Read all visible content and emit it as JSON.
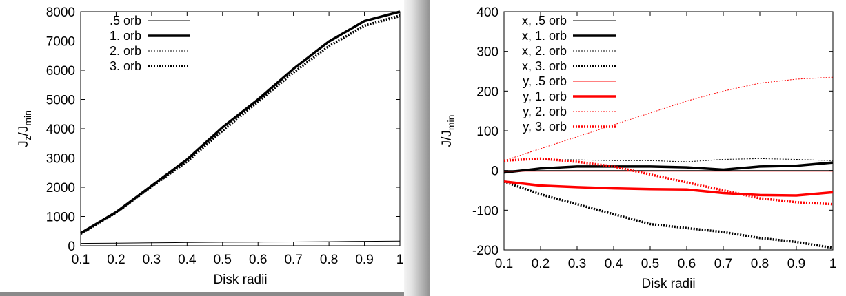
{
  "chart_data": [
    {
      "type": "line",
      "xlabel": "Disk radii",
      "ylabel": "J_z/J_min",
      "ylabel_main": "J",
      "ylabel_sub1": "z",
      "ylabel_mid": "/J",
      "ylabel_sub2": "min",
      "xlim": [
        0.1,
        1
      ],
      "ylim": [
        0,
        8000
      ],
      "x_ticks": [
        "0.1",
        "0.2",
        "0.3",
        "0.4",
        "0.5",
        "0.6",
        "0.7",
        "0.8",
        "0.9",
        "1"
      ],
      "y_ticks": [
        "0",
        "1000",
        "2000",
        "3000",
        "4000",
        "5000",
        "6000",
        "7000",
        "8000"
      ],
      "legend_position": "top-left",
      "grid": false,
      "x": [
        0.1,
        0.2,
        0.3,
        0.4,
        0.5,
        0.6,
        0.7,
        0.8,
        0.9,
        1.0
      ],
      "series": [
        {
          "name": ".5 orb",
          "color": "#000000",
          "style": "thin-solid",
          "values": [
            80,
            90,
            100,
            110,
            120,
            125,
            130,
            140,
            150,
            160
          ]
        },
        {
          "name": "1. orb",
          "color": "#000000",
          "style": "thick-solid",
          "values": [
            430,
            1150,
            2050,
            2950,
            4050,
            5000,
            6050,
            6980,
            7680,
            8000
          ]
        },
        {
          "name": "2. orb",
          "color": "#000000",
          "style": "thin-dotted",
          "values": [
            420,
            1140,
            2030,
            2900,
            3950,
            4950,
            5950,
            6850,
            7550,
            7900
          ]
        },
        {
          "name": "3. orb",
          "color": "#000000",
          "style": "thick-dotted",
          "values": [
            410,
            1130,
            2020,
            2880,
            3930,
            4920,
            5920,
            6820,
            7520,
            7850
          ]
        }
      ]
    },
    {
      "type": "line",
      "xlabel": "Disk radii",
      "ylabel": "J/J_min",
      "ylabel_main": "J/J",
      "ylabel_sub": "min",
      "xlim": [
        0.1,
        1
      ],
      "ylim": [
        -200,
        400
      ],
      "x_ticks": [
        "0.1",
        "0.2",
        "0.3",
        "0.4",
        "0.5",
        "0.6",
        "0.7",
        "0.8",
        "0.9",
        "1"
      ],
      "y_ticks": [
        "-200",
        "-100",
        "0",
        "100",
        "200",
        "300",
        "400"
      ],
      "legend_position": "top-left",
      "grid": false,
      "x": [
        0.1,
        0.2,
        0.3,
        0.4,
        0.5,
        0.6,
        0.7,
        0.8,
        0.9,
        1.0
      ],
      "series": [
        {
          "name": "x, .5 orb",
          "color": "#000000",
          "style": "thin-solid",
          "values": [
            0,
            0,
            0,
            0,
            0,
            0,
            0,
            0,
            0,
            0
          ]
        },
        {
          "name": "x, 1. orb",
          "color": "#000000",
          "style": "thick-solid",
          "values": [
            -5,
            5,
            10,
            10,
            10,
            8,
            2,
            10,
            12,
            20
          ]
        },
        {
          "name": "x, 2. orb",
          "color": "#000000",
          "style": "thin-dotted",
          "values": [
            25,
            28,
            27,
            25,
            25,
            22,
            28,
            30,
            28,
            25
          ]
        },
        {
          "name": "x, 3. orb",
          "color": "#000000",
          "style": "thick-dotted",
          "values": [
            -28,
            -60,
            -85,
            -110,
            -135,
            -145,
            -155,
            -170,
            -180,
            -195
          ]
        },
        {
          "name": "y, .5 orb",
          "color": "#ff0000",
          "style": "thin-solid",
          "values": [
            -2,
            -2,
            -2,
            -2,
            -2,
            -2,
            -2,
            -2,
            -2,
            -2
          ]
        },
        {
          "name": "y, 1. orb",
          "color": "#ff0000",
          "style": "thick-solid",
          "values": [
            -28,
            -38,
            -42,
            -45,
            -47,
            -48,
            -57,
            -62,
            -63,
            -55
          ]
        },
        {
          "name": "y, 2. orb",
          "color": "#ff0000",
          "style": "thin-dotted",
          "values": [
            25,
            55,
            85,
            115,
            145,
            175,
            200,
            220,
            230,
            235
          ]
        },
        {
          "name": "y, 3. orb",
          "color": "#ff0000",
          "style": "thick-dotted",
          "values": [
            25,
            30,
            22,
            10,
            -10,
            -30,
            -50,
            -70,
            -80,
            -85
          ]
        }
      ]
    }
  ]
}
